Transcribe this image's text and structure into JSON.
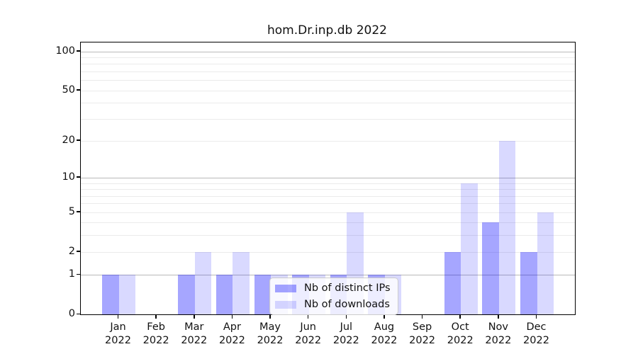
{
  "chart_data": {
    "type": "bar",
    "title": "hom.Dr.inp.db 2022",
    "categories": [
      "Jan",
      "Feb",
      "Mar",
      "Apr",
      "May",
      "Jun",
      "Jul",
      "Aug",
      "Sep",
      "Oct",
      "Nov",
      "Dec"
    ],
    "x_year_label": "2022",
    "series": [
      {
        "name": "Nb of distinct IPs",
        "color": "rgba(0,0,255,0.35)",
        "values": [
          1,
          0,
          1,
          1,
          1,
          1,
          1,
          1,
          0,
          2,
          4,
          2
        ]
      },
      {
        "name": "Nb of downloads",
        "color": "rgba(0,0,255,0.15)",
        "values": [
          1,
          0,
          2,
          2,
          1,
          1,
          5,
          1,
          0,
          9,
          20,
          5
        ]
      }
    ],
    "y_axis": {
      "ticks": [
        0,
        1,
        2,
        5,
        10,
        20,
        50,
        100
      ],
      "scale": "log1p",
      "min": 0,
      "max": 117
    },
    "grid": {
      "major_color": "#b9b9b9",
      "minor_color": "#ebebeb",
      "major_lines": [
        1,
        10,
        100
      ],
      "minor_lines": [
        2,
        3,
        4,
        5,
        6,
        7,
        8,
        9,
        20,
        30,
        40,
        50,
        60,
        70,
        80,
        90
      ]
    },
    "legend": {
      "position": "lower center"
    }
  }
}
